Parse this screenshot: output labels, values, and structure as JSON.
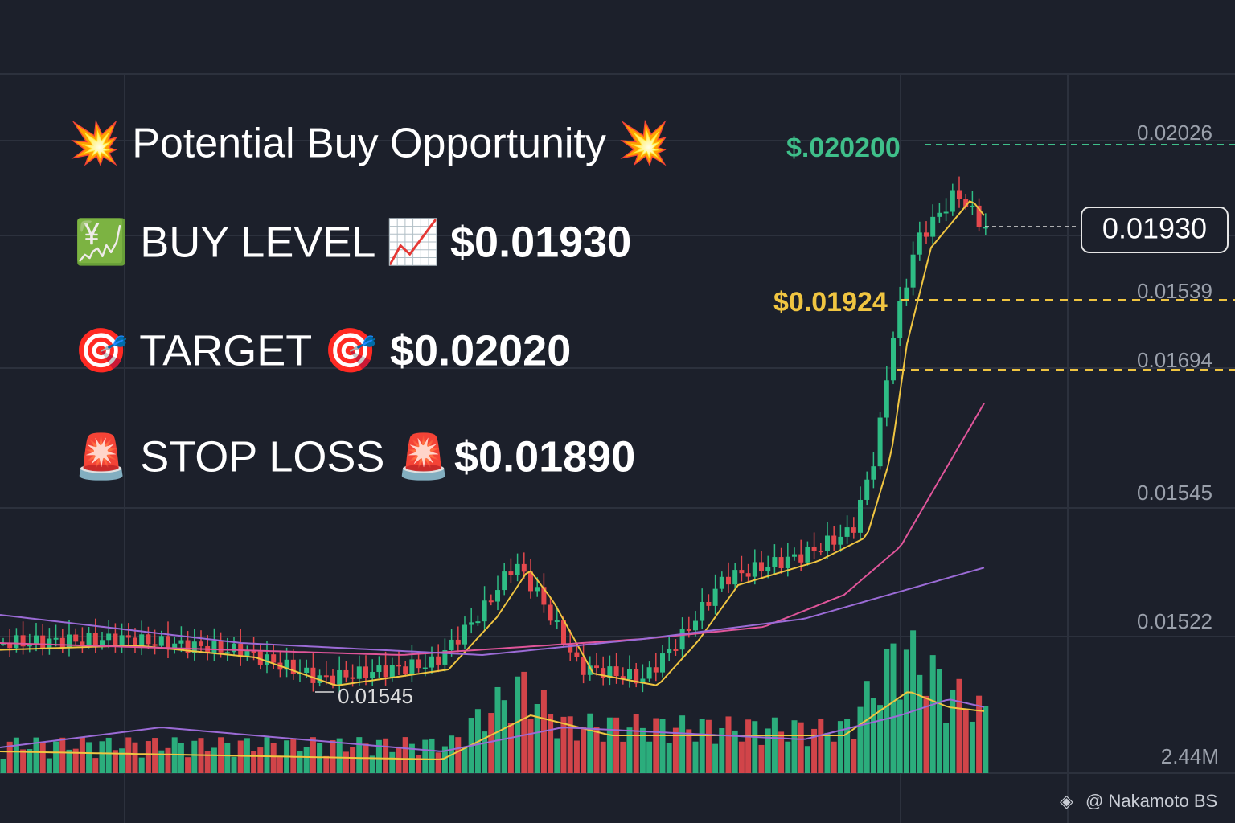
{
  "header": {
    "title": "💥 Potential Buy Opportunity 💥"
  },
  "signals": [
    {
      "label": "💹 BUY LEVEL 📈",
      "price": "$0.01930"
    },
    {
      "label": "🎯 TARGET 🎯",
      "price": "$0.02020"
    },
    {
      "label": "🚨 STOP LOSS 🚨",
      "price": "$0.01890"
    }
  ],
  "price_axis": [
    "0.02026",
    "0.01539",
    "0.01694",
    "0.01545",
    "0.01522"
  ],
  "volume_axis": "2.44M",
  "annotations": {
    "high": "$.020200",
    "current": "0.01930",
    "level": "$0.01924",
    "low": "0.01545"
  },
  "watermark": "@ Nakamoto BS"
}
